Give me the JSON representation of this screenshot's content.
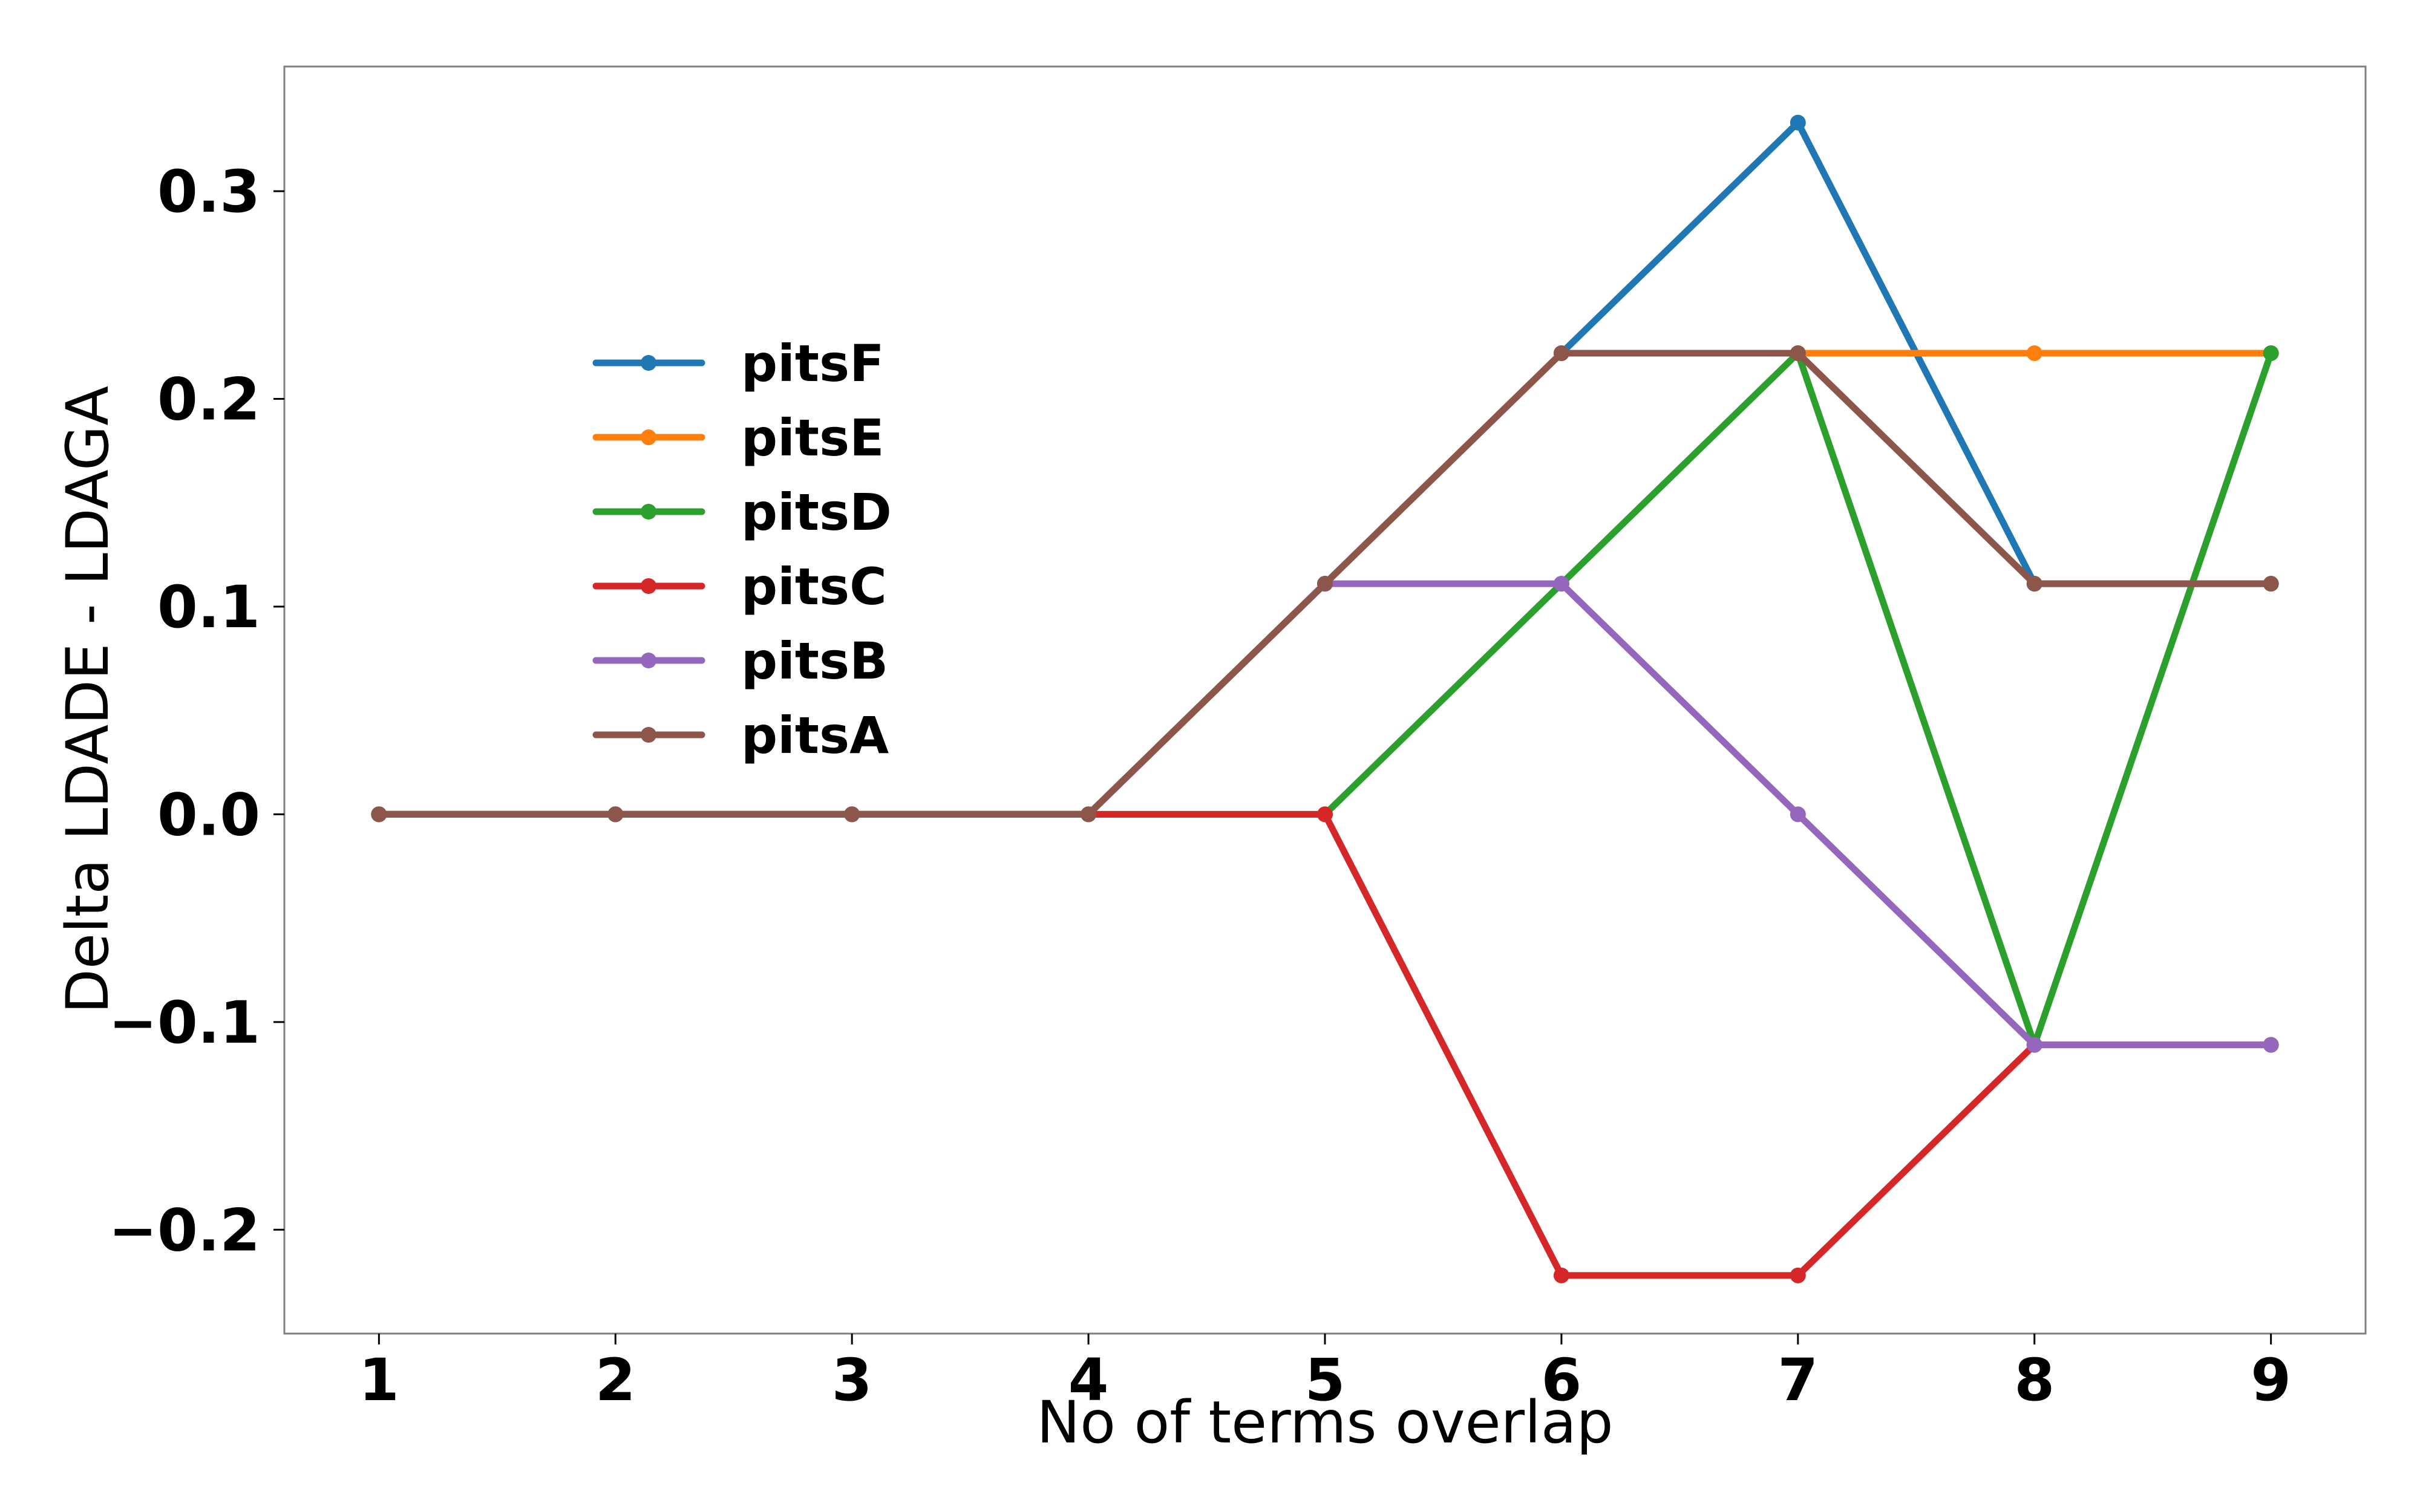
{
  "chart_data": {
    "type": "line",
    "title": "",
    "xlabel": "No of terms overlap",
    "ylabel": "Delta LDADE - LDAGA",
    "x": [
      1,
      2,
      3,
      4,
      5,
      6,
      7,
      8,
      9
    ],
    "xlim": [
      0.6,
      9.4
    ],
    "ylim": [
      -0.25,
      0.36
    ],
    "y_ticks": [
      -0.2,
      -0.1,
      0.0,
      0.1,
      0.2,
      0.3
    ],
    "y_tick_labels": [
      "−0.2",
      "−0.1",
      "0.0",
      "0.1",
      "0.2",
      "0.3"
    ],
    "x_tick_labels": [
      "1",
      "2",
      "3",
      "4",
      "5",
      "6",
      "7",
      "8",
      "9"
    ],
    "grid": false,
    "legend": "upper-left-inside",
    "series": [
      {
        "name": "pitsF",
        "color": "#1f77b4",
        "values": [
          0.0,
          0.0,
          0.0,
          0.0,
          0.111,
          0.222,
          0.333,
          0.111,
          0.111
        ]
      },
      {
        "name": "pitsE",
        "color": "#ff7f0e",
        "values": [
          0.0,
          0.0,
          0.0,
          0.0,
          0.111,
          0.222,
          0.222,
          0.222,
          0.222
        ]
      },
      {
        "name": "pitsD",
        "color": "#2ca02c",
        "values": [
          0.0,
          0.0,
          0.0,
          0.0,
          0.0,
          0.111,
          0.222,
          -0.111,
          0.222
        ]
      },
      {
        "name": "pitsC",
        "color": "#d62728",
        "values": [
          0.0,
          0.0,
          0.0,
          0.0,
          0.0,
          -0.222,
          -0.222,
          -0.111,
          -0.111
        ]
      },
      {
        "name": "pitsB",
        "color": "#9467bd",
        "values": [
          0.0,
          0.0,
          0.0,
          0.0,
          0.111,
          0.111,
          0.0,
          -0.111,
          -0.111
        ]
      },
      {
        "name": "pitsA",
        "color": "#8c564b",
        "values": [
          0.0,
          0.0,
          0.0,
          0.0,
          0.111,
          0.222,
          0.222,
          0.111,
          0.111
        ]
      }
    ]
  }
}
